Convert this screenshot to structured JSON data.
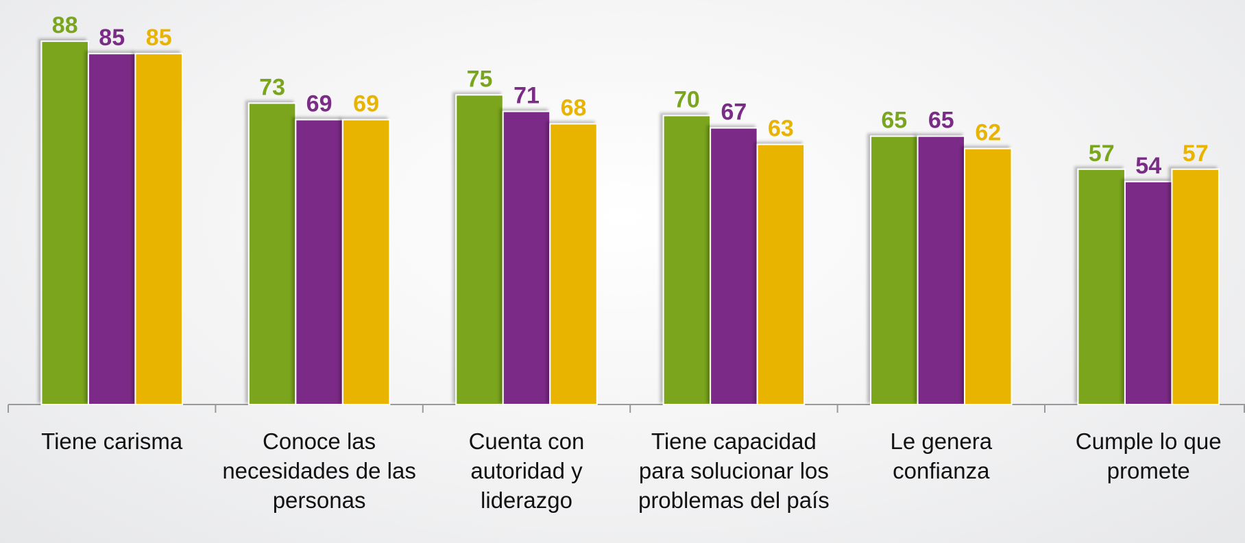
{
  "chart_data": {
    "type": "bar",
    "categories": [
      "Tiene carisma",
      "Conoce las necesidades de las personas",
      "Cuenta con autoridad y liderazgo",
      "Tiene capacidad para solucionar los problemas del país",
      "Le genera confianza",
      "Cumple lo que promete"
    ],
    "series": [
      {
        "color": "#7aa51f",
        "values": [
          88,
          73,
          75,
          70,
          65,
          57
        ]
      },
      {
        "color": "#7b2c87",
        "values": [
          85,
          69,
          71,
          67,
          65,
          54
        ]
      },
      {
        "color": "#e8b400",
        "values": [
          85,
          69,
          68,
          63,
          62,
          57
        ]
      }
    ],
    "ylim": [
      0,
      95
    ]
  }
}
